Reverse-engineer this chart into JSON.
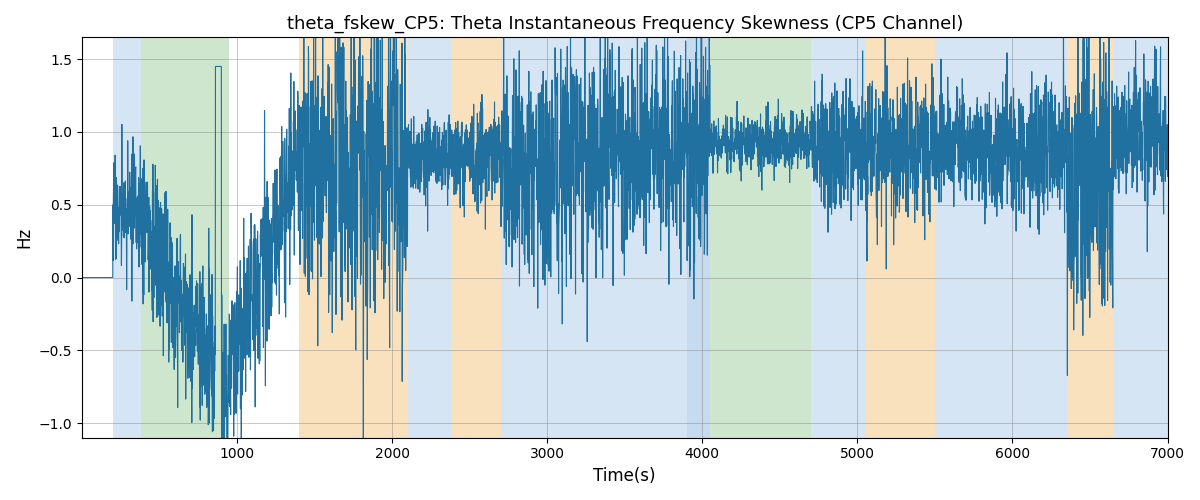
{
  "title": "theta_fskew_CP5: Theta Instantaneous Frequency Skewness (CP5 Channel)",
  "xlabel": "Time(s)",
  "ylabel": "Hz",
  "xlim": [
    0,
    7000
  ],
  "ylim": [
    -1.1,
    1.65
  ],
  "line_color": "#2070a0",
  "line_width": 0.8,
  "bg_regions": [
    {
      "xstart": 200,
      "xend": 380,
      "color": "#aecde8",
      "alpha": 0.5
    },
    {
      "xstart": 380,
      "xend": 950,
      "color": "#90c990",
      "alpha": 0.45
    },
    {
      "xstart": 950,
      "xend": 1400,
      "color": "#ffffff",
      "alpha": 0.0
    },
    {
      "xstart": 1400,
      "xend": 2100,
      "color": "#f5c98a",
      "alpha": 0.55
    },
    {
      "xstart": 2100,
      "xend": 2380,
      "color": "#aecde8",
      "alpha": 0.5
    },
    {
      "xstart": 2380,
      "xend": 2700,
      "color": "#f5c98a",
      "alpha": 0.55
    },
    {
      "xstart": 2700,
      "xend": 3900,
      "color": "#aecde8",
      "alpha": 0.5
    },
    {
      "xstart": 3900,
      "xend": 4050,
      "color": "#aecde8",
      "alpha": 0.7
    },
    {
      "xstart": 4050,
      "xend": 4700,
      "color": "#90c990",
      "alpha": 0.45
    },
    {
      "xstart": 4700,
      "xend": 5050,
      "color": "#aecde8",
      "alpha": 0.5
    },
    {
      "xstart": 5050,
      "xend": 5500,
      "color": "#f5c98a",
      "alpha": 0.55
    },
    {
      "xstart": 5500,
      "xend": 6350,
      "color": "#aecde8",
      "alpha": 0.5
    },
    {
      "xstart": 6350,
      "xend": 6650,
      "color": "#f5c98a",
      "alpha": 0.55
    },
    {
      "xstart": 6650,
      "xend": 7000,
      "color": "#aecde8",
      "alpha": 0.5
    }
  ],
  "xticks": [
    1000,
    2000,
    3000,
    4000,
    5000,
    6000,
    7000
  ],
  "yticks": [
    -1.0,
    -0.5,
    0.0,
    0.5,
    1.0,
    1.5
  ],
  "seed": 17
}
